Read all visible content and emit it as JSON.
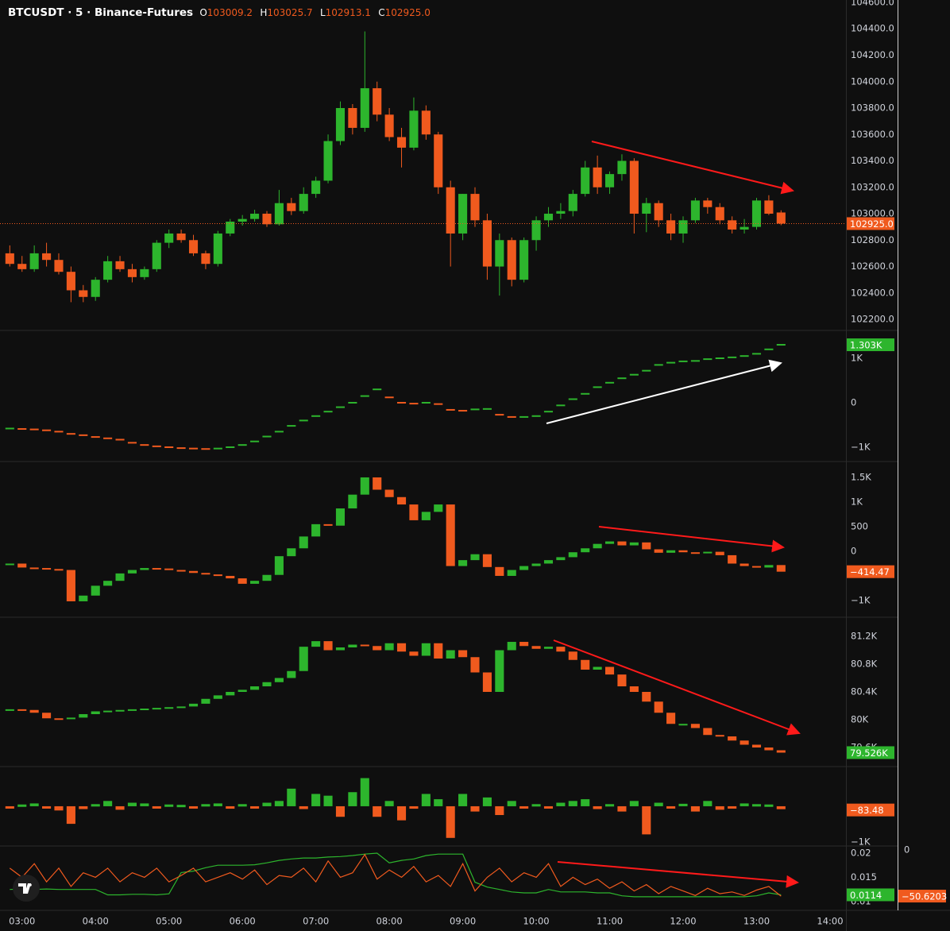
{
  "header": {
    "symbol": "BTCUSDT · 5 · Binance-Futures",
    "o_label": "O",
    "open": "103009.2",
    "h_label": "H",
    "high": "103025.7",
    "l_label": "L",
    "low": "102913.1",
    "c_label": "C",
    "close": "102925.0"
  },
  "chart_data": [
    {
      "type": "candlestick",
      "up_color": "#2db52d",
      "down_color": "#f05a1e",
      "label_color": "#f05a1e",
      "last_label": "102925.0",
      "xlim": [
        162,
        853
      ],
      "xticks": [
        {
          "value": 180,
          "label": "03:00"
        },
        {
          "value": 240,
          "label": "04:00"
        },
        {
          "value": 300,
          "label": "05:00"
        },
        {
          "value": 360,
          "label": "06:00"
        },
        {
          "value": 420,
          "label": "07:00"
        },
        {
          "value": 480,
          "label": "08:00"
        },
        {
          "value": 540,
          "label": "09:00"
        },
        {
          "value": 600,
          "label": "10:00"
        },
        {
          "value": 660,
          "label": "11:00"
        },
        {
          "value": 720,
          "label": "12:00"
        },
        {
          "value": 780,
          "label": "13:00"
        },
        {
          "value": 840,
          "label": "14:00"
        }
      ],
      "x": [
        170,
        180,
        190,
        200,
        210,
        220,
        230,
        240,
        250,
        260,
        270,
        280,
        290,
        300,
        310,
        320,
        330,
        340,
        350,
        360,
        370,
        380,
        390,
        400,
        410,
        420,
        430,
        440,
        450,
        460,
        470,
        480,
        490,
        500,
        510,
        520,
        530,
        540,
        550,
        560,
        570,
        580,
        590,
        600,
        610,
        620,
        630,
        640,
        650,
        660,
        670,
        680,
        690,
        700,
        710,
        720,
        730,
        740,
        750,
        760,
        770,
        780,
        790,
        800
      ],
      "ohlc": [
        [
          102700,
          102760,
          102600,
          102620
        ],
        [
          102620,
          102680,
          102560,
          102580
        ],
        [
          102580,
          102760,
          102560,
          102700
        ],
        [
          102700,
          102780,
          102600,
          102650
        ],
        [
          102650,
          102700,
          102540,
          102560
        ],
        [
          102560,
          102600,
          102330,
          102420
        ],
        [
          102420,
          102460,
          102330,
          102370
        ],
        [
          102370,
          102520,
          102340,
          102500
        ],
        [
          102500,
          102680,
          102480,
          102640
        ],
        [
          102640,
          102680,
          102560,
          102580
        ],
        [
          102580,
          102620,
          102480,
          102520
        ],
        [
          102520,
          102600,
          102500,
          102580
        ],
        [
          102580,
          102800,
          102560,
          102780
        ],
        [
          102780,
          102880,
          102740,
          102850
        ],
        [
          102850,
          102880,
          102780,
          102800
        ],
        [
          102800,
          102840,
          102680,
          102700
        ],
        [
          102700,
          102720,
          102580,
          102620
        ],
        [
          102620,
          102870,
          102600,
          102850
        ],
        [
          102850,
          102960,
          102830,
          102940
        ],
        [
          102940,
          102990,
          102910,
          102960
        ],
        [
          102960,
          103030,
          102940,
          103000
        ],
        [
          103000,
          103020,
          102900,
          102920
        ],
        [
          102920,
          103180,
          102910,
          103080
        ],
        [
          103080,
          103120,
          102990,
          103020
        ],
        [
          103020,
          103200,
          103000,
          103150
        ],
        [
          103150,
          103280,
          103120,
          103250
        ],
        [
          103250,
          103600,
          103230,
          103550
        ],
        [
          103550,
          103850,
          103520,
          103800
        ],
        [
          103800,
          103830,
          103600,
          103650
        ],
        [
          103650,
          104380,
          103620,
          103950
        ],
        [
          103950,
          104000,
          103700,
          103750
        ],
        [
          103750,
          103800,
          103550,
          103580
        ],
        [
          103580,
          103650,
          103350,
          103500
        ],
        [
          103500,
          103880,
          103480,
          103780
        ],
        [
          103780,
          103820,
          103560,
          103600
        ],
        [
          103600,
          103620,
          103150,
          103200
        ],
        [
          103200,
          103250,
          102600,
          102850
        ],
        [
          102850,
          103150,
          102800,
          103150
        ],
        [
          103150,
          103200,
          102900,
          102950
        ],
        [
          102950,
          103000,
          102500,
          102600
        ],
        [
          102600,
          102850,
          102380,
          102800
        ],
        [
          102800,
          102820,
          102450,
          102500
        ],
        [
          102500,
          102820,
          102480,
          102800
        ],
        [
          102800,
          102980,
          102720,
          102950
        ],
        [
          102950,
          103050,
          102900,
          103000
        ],
        [
          103000,
          103080,
          102960,
          103020
        ],
        [
          103020,
          103180,
          102980,
          103150
        ],
        [
          103150,
          103400,
          103130,
          103350
        ],
        [
          103350,
          103440,
          103150,
          103200
        ],
        [
          103200,
          103320,
          103150,
          103300
        ],
        [
          103300,
          103450,
          103250,
          103400
        ],
        [
          103400,
          103420,
          102850,
          103000
        ],
        [
          103000,
          103120,
          102860,
          103080
        ],
        [
          103080,
          103100,
          102900,
          102950
        ],
        [
          102950,
          103000,
          102800,
          102850
        ],
        [
          102850,
          102980,
          102780,
          102950
        ],
        [
          102950,
          103120,
          102930,
          103100
        ],
        [
          103100,
          103120,
          103000,
          103050
        ],
        [
          103050,
          103080,
          102920,
          102950
        ],
        [
          102950,
          102980,
          102850,
          102880
        ],
        [
          102880,
          102960,
          102850,
          102900
        ],
        [
          102900,
          103120,
          102880,
          103100
        ],
        [
          103100,
          103140,
          102990,
          103000
        ],
        [
          103009.2,
          103025.7,
          102913.1,
          102925.0
        ]
      ],
      "ylim": [
        102122,
        104618
      ],
      "yticks": [
        {
          "value": 102200,
          "label": "102200.0"
        },
        {
          "value": 102400,
          "label": "102400.0"
        },
        {
          "value": 102600,
          "label": "102600.0"
        },
        {
          "value": 102800,
          "label": "102800.0"
        },
        {
          "value": 103000,
          "label": "103000.0"
        },
        {
          "value": 103200,
          "label": "103200.0"
        },
        {
          "value": 103400,
          "label": "103400.0"
        },
        {
          "value": 103600,
          "label": "103600.0"
        },
        {
          "value": 103800,
          "label": "103800.0"
        },
        {
          "value": 104000,
          "label": "104000.0"
        },
        {
          "value": 104200,
          "label": "104200.0"
        },
        {
          "value": 104400,
          "label": "104400.0"
        },
        {
          "value": 104600,
          "label": "104600.0"
        }
      ]
    },
    {
      "type": "dash",
      "up_color": "#2db52d",
      "down_color": "#f05a1e",
      "label_color": "#2db52d",
      "last_label": "1.303K",
      "values": [
        -580,
        -590,
        -600,
        -620,
        -650,
        -700,
        -730,
        -770,
        -800,
        -830,
        -900,
        -950,
        -980,
        -1000,
        -1020,
        -1030,
        -1040,
        -1030,
        -1000,
        -950,
        -870,
        -760,
        -650,
        -520,
        -400,
        -300,
        -200,
        -100,
        0,
        150,
        300,
        120,
        0,
        -20,
        0,
        -30,
        -160,
        -180,
        -150,
        -140,
        -270,
        -320,
        -320,
        -300,
        -200,
        -60,
        80,
        200,
        350,
        450,
        550,
        630,
        720,
        850,
        900,
        930,
        940,
        980,
        1000,
        1020,
        1050,
        1100,
        1200,
        1303
      ],
      "ylim": [
        -1304,
        1607
      ],
      "yticks": [
        {
          "value": 1000,
          "label": "1K"
        },
        0,
        {
          "value": -1000,
          "label": "−1K"
        }
      ]
    },
    {
      "type": "block",
      "up_color": "#2db52d",
      "down_color": "#f05a1e",
      "label_color": "#f05a1e",
      "last_label": "−414.47",
      "values": [
        -250,
        -330,
        -340,
        -360,
        -380,
        -1016,
        -900,
        -700,
        -600,
        -450,
        -380,
        -340,
        -350,
        -380,
        -400,
        -440,
        -470,
        -500,
        -550,
        -660,
        -600,
        -480,
        -100,
        60,
        300,
        550,
        520,
        870,
        1150,
        1500,
        1250,
        1100,
        950,
        630,
        800,
        950,
        -300,
        -180,
        -60,
        -320,
        -500,
        -380,
        -300,
        -250,
        -180,
        -120,
        -20,
        60,
        150,
        200,
        120,
        180,
        40,
        -30,
        20,
        -20,
        -40,
        -10,
        -80,
        -250,
        -300,
        -330,
        -280,
        -414.47
      ],
      "ylim": [
        -1323,
        1806
      ],
      "yticks": [
        {
          "value": 1500,
          "label": "1.5K"
        },
        {
          "value": 1000,
          "label": "1K"
        },
        500,
        0,
        {
          "value": -1000,
          "label": "−1K"
        }
      ]
    },
    {
      "type": "block",
      "up_color": "#2db52d",
      "down_color": "#f05a1e",
      "label_color": "#2db52d",
      "last_label": "79.526K",
      "values": [
        80150,
        80140,
        80100,
        80020,
        80010,
        80030,
        80080,
        80120,
        80130,
        80140,
        80150,
        80160,
        80170,
        80180,
        80190,
        80230,
        80300,
        80350,
        80400,
        80430,
        80480,
        80540,
        80600,
        80700,
        81050,
        81130,
        81000,
        81040,
        81080,
        81060,
        81000,
        81100,
        80980,
        80920,
        81100,
        80880,
        81000,
        80900,
        80680,
        80400,
        81000,
        81120,
        81060,
        81020,
        81050,
        80980,
        80860,
        80720,
        80760,
        80650,
        80480,
        80400,
        80260,
        80100,
        79940,
        79940,
        79880,
        79780,
        79760,
        79700,
        79640,
        79600,
        79560,
        79526
      ],
      "ylim": [
        79337,
        81463
      ],
      "yticks": [
        {
          "value": 79600,
          "label": "79.6K"
        },
        {
          "value": 80000,
          "label": "80K"
        },
        {
          "value": 80400,
          "label": "80.4K"
        },
        {
          "value": 80800,
          "label": "80.8K"
        },
        {
          "value": 81200,
          "label": "81.2K"
        }
      ]
    },
    {
      "type": "bar",
      "up_color": "#2db52d",
      "down_color": "#f05a1e",
      "label_color": "#f05a1e",
      "last_label": "−83.48",
      "values": [
        -50,
        50,
        80,
        -60,
        -120,
        -500,
        -80,
        60,
        150,
        -100,
        100,
        80,
        -60,
        50,
        40,
        -60,
        60,
        80,
        -70,
        60,
        -50,
        100,
        150,
        500,
        -80,
        350,
        300,
        -300,
        400,
        800,
        -300,
        150,
        -400,
        -70,
        350,
        200,
        -900,
        350,
        -150,
        250,
        -250,
        150,
        -50,
        60,
        -60,
        100,
        150,
        200,
        -80,
        60,
        -150,
        150,
        -800,
        100,
        -60,
        70,
        -150,
        150,
        -100,
        -50,
        80,
        60,
        50,
        -83.48
      ],
      "ylim": [
        -1085,
        1128
      ],
      "yticks": [
        {
          "value": -1000,
          "label": "−1K"
        }
      ]
    },
    {
      "type": "line",
      "ylim": [
        0.00836,
        0.02131
      ],
      "yticks": [
        0.02,
        0.015,
        0.01
      ],
      "y2lim": [
        -65.4,
        3.5
      ],
      "y2ticks": [
        0
      ],
      "series": [
        {
          "color": "#2db52d",
          "label_color": "#2db52d",
          "last_label": "0.0114",
          "values": [
            0.0125,
            0.0126,
            0.0125,
            0.0126,
            0.0125,
            0.0125,
            0.0125,
            0.0125,
            0.0114,
            0.0114,
            0.0115,
            0.0115,
            0.0114,
            0.0116,
            0.016,
            0.0163,
            0.017,
            0.0175,
            0.0175,
            0.0175,
            0.0176,
            0.018,
            0.0185,
            0.0188,
            0.019,
            0.019,
            0.0192,
            0.0193,
            0.0195,
            0.0198,
            0.02,
            0.018,
            0.0185,
            0.0188,
            0.0195,
            0.0198,
            0.0198,
            0.0198,
            0.014,
            0.013,
            0.0125,
            0.012,
            0.0118,
            0.0118,
            0.0125,
            0.012,
            0.012,
            0.012,
            0.0118,
            0.0118,
            0.0112,
            0.011,
            0.011,
            0.011,
            0.011,
            0.011,
            0.011,
            0.011,
            0.011,
            0.011,
            0.011,
            0.0112,
            0.0118,
            0.0114
          ]
        },
        {
          "color": "#f05a1e",
          "label_color": "#f05a1e",
          "last_label": "−50.6203",
          "axis": "y2",
          "values": [
            -20,
            -30,
            -15,
            -35,
            -20,
            -40,
            -25,
            -30,
            -20,
            -35,
            -25,
            -30,
            -20,
            -35,
            -28,
            -20,
            -35,
            -30,
            -25,
            -32,
            -22,
            -38,
            -28,
            -30,
            -20,
            -35,
            -12,
            -30,
            -25,
            -5,
            -32,
            -22,
            -30,
            -18,
            -35,
            -28,
            -40,
            -15,
            -45,
            -30,
            -20,
            -35,
            -25,
            -30,
            -15,
            -40,
            -30,
            -38,
            -32,
            -42,
            -35,
            -45,
            -38,
            -48,
            -40,
            -45,
            -50,
            -42,
            -48,
            -46,
            -50,
            -44,
            -40,
            -50.6203
          ]
        }
      ]
    }
  ]
}
